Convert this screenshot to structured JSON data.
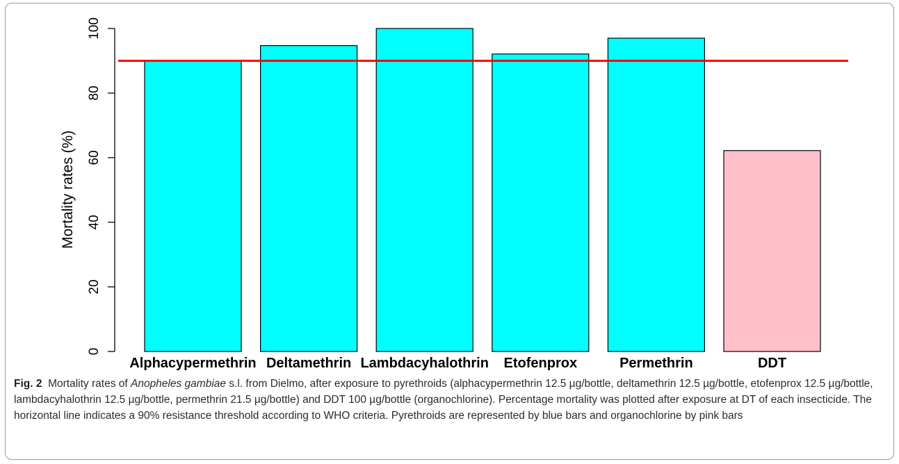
{
  "chart_data": {
    "type": "bar",
    "categories": [
      "Alphacypermethrin",
      "Deltamethrin",
      "Lambdacyhalothrin",
      "Etofenprox",
      "Permethrin",
      "DDT"
    ],
    "values": [
      90,
      94.7,
      100,
      92.1,
      97,
      62.2
    ],
    "colors": [
      "#00ffff",
      "#00ffff",
      "#00ffff",
      "#00ffff",
      "#00ffff",
      "#ffc0cb"
    ],
    "ylabel": "Mortality rates (%)",
    "xlabel": "",
    "title": "",
    "ylim": [
      0,
      100
    ],
    "yticks": [
      0,
      20,
      40,
      60,
      80,
      100
    ],
    "threshold": 90,
    "threshold_color": "#ff0000",
    "grid": false,
    "legend": "none"
  },
  "caption": {
    "label": "Fig. 2",
    "text_1": "Mortality rates of ",
    "species": "Anopheles gambiae",
    "text_2": " s.l. from Dielmo, after exposure to pyrethroids (alphacypermethrin 12.5 µg/bottle, deltamethrin 12.5 µg/bottle, etofenprox 12.5 µg/bottle, lambdacyhalothrin 12.5 µg/bottle, permethrin 21.5 µg/bottle) and DDT 100 µg/bottle (organochlorine). Percentage mortality was plotted after exposure at DT of each insecticide. The horizontal line indicates a 90% resistance threshold according to WHO criteria. Pyrethroids are represented by blue bars and organochlorine by pink bars"
  }
}
